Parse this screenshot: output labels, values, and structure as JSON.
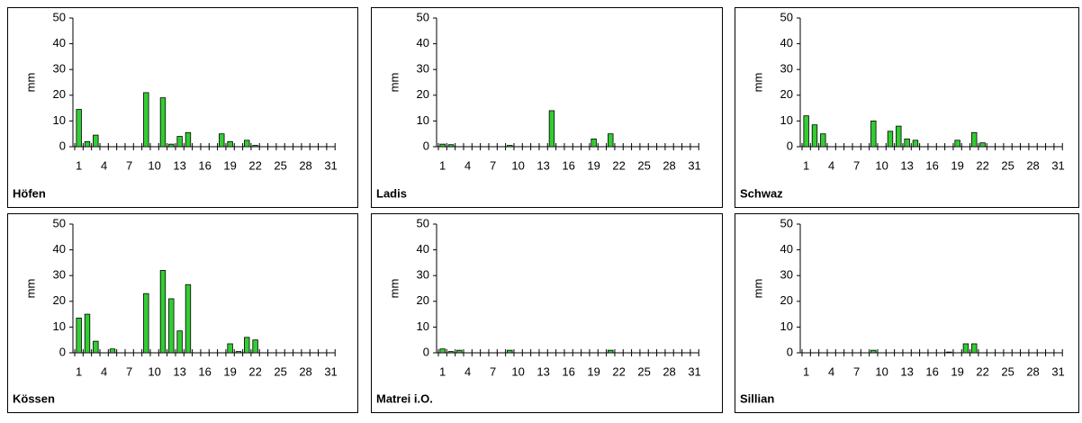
{
  "chart_data": [
    {
      "type": "bar",
      "title": "Höfen",
      "y_label": "mm",
      "color": "#33cc33",
      "categories": [
        "1",
        null,
        null,
        "4",
        null,
        null,
        "7",
        null,
        null,
        "10",
        null,
        null,
        "13",
        null,
        null,
        "16",
        null,
        null,
        "19",
        null,
        null,
        "22",
        null,
        null,
        "25",
        null,
        null,
        "28",
        null,
        null,
        "31"
      ],
      "values": [
        14.5,
        2,
        4.5,
        0,
        0,
        0,
        0,
        0,
        21,
        0,
        19,
        1,
        4,
        5.5,
        0,
        0,
        0,
        5,
        2,
        0,
        2.5,
        0.5,
        0,
        0,
        0,
        0,
        0,
        0,
        0,
        0,
        0
      ],
      "ylim": [
        0,
        50
      ],
      "yticks": [
        0,
        10,
        20,
        30,
        40,
        50
      ]
    },
    {
      "type": "bar",
      "title": "Ladis",
      "y_label": "mm",
      "color": "#33cc33",
      "categories": [
        "1",
        null,
        null,
        "4",
        null,
        null,
        "7",
        null,
        null,
        "10",
        null,
        null,
        "13",
        null,
        null,
        "16",
        null,
        null,
        "19",
        null,
        null,
        "22",
        null,
        null,
        "25",
        null,
        null,
        "28",
        null,
        null,
        "31"
      ],
      "values": [
        1,
        0.8,
        0,
        0,
        0,
        0,
        0,
        0,
        0.5,
        0,
        0,
        0,
        0,
        14,
        0,
        0,
        0,
        0,
        3,
        0,
        5,
        0,
        0,
        0,
        0,
        0,
        0,
        0,
        0,
        0,
        0
      ],
      "ylim": [
        0,
        50
      ],
      "yticks": [
        0,
        10,
        20,
        30,
        40,
        50
      ]
    },
    {
      "type": "bar",
      "title": "Schwaz",
      "y_label": "mm",
      "color": "#33cc33",
      "categories": [
        "1",
        null,
        null,
        "4",
        null,
        null,
        "7",
        null,
        null,
        "10",
        null,
        null,
        "13",
        null,
        null,
        "16",
        null,
        null,
        "19",
        null,
        null,
        "22",
        null,
        null,
        "25",
        null,
        null,
        "28",
        null,
        null,
        "31"
      ],
      "values": [
        12,
        8.5,
        5,
        0,
        0,
        0,
        0,
        0,
        10,
        0,
        6,
        8,
        3,
        2.5,
        0,
        0,
        0,
        0,
        2.5,
        0,
        5.5,
        1.5,
        0,
        0,
        0,
        0,
        0,
        0,
        0,
        0,
        0
      ],
      "ylim": [
        0,
        50
      ],
      "yticks": [
        0,
        10,
        20,
        30,
        40,
        50
      ]
    },
    {
      "type": "bar",
      "title": "Kössen",
      "y_label": "mm",
      "color": "#33cc33",
      "categories": [
        "1",
        null,
        null,
        "4",
        null,
        null,
        "7",
        null,
        null,
        "10",
        null,
        null,
        "13",
        null,
        null,
        "16",
        null,
        null,
        "19",
        null,
        null,
        "22",
        null,
        null,
        "25",
        null,
        null,
        "28",
        null,
        null,
        "31"
      ],
      "values": [
        13.5,
        15,
        4.5,
        0,
        1.5,
        0,
        0,
        0,
        23,
        0,
        32,
        21,
        8.5,
        26.5,
        0,
        0,
        0,
        0,
        3.5,
        0.5,
        6,
        5,
        0,
        0,
        0,
        0,
        0,
        0,
        0,
        0,
        0
      ],
      "ylim": [
        0,
        50
      ],
      "yticks": [
        0,
        10,
        20,
        30,
        40,
        50
      ]
    },
    {
      "type": "bar",
      "title": "Matrei i.O.",
      "y_label": "mm",
      "color": "#33cc33",
      "categories": [
        "1",
        null,
        null,
        "4",
        null,
        null,
        "7",
        null,
        null,
        "10",
        null,
        null,
        "13",
        null,
        null,
        "16",
        null,
        null,
        "19",
        null,
        null,
        "22",
        null,
        null,
        "25",
        null,
        null,
        "28",
        null,
        null,
        "31"
      ],
      "values": [
        1.5,
        0.5,
        1,
        0,
        0,
        0,
        0,
        0,
        1,
        0,
        0,
        0,
        0,
        0,
        0,
        0,
        0,
        0,
        0,
        0,
        1,
        0,
        0,
        0,
        0,
        0,
        0,
        0,
        0,
        0,
        0
      ],
      "ylim": [
        0,
        50
      ],
      "yticks": [
        0,
        10,
        20,
        30,
        40,
        50
      ]
    },
    {
      "type": "bar",
      "title": "Sillian",
      "y_label": "mm",
      "color": "#33cc33",
      "categories": [
        "1",
        null,
        null,
        "4",
        null,
        null,
        "7",
        null,
        null,
        "10",
        null,
        null,
        "13",
        null,
        null,
        "16",
        null,
        null,
        "19",
        null,
        null,
        "22",
        null,
        null,
        "25",
        null,
        null,
        "28",
        null,
        null,
        "31"
      ],
      "values": [
        0,
        0,
        0,
        0,
        0,
        0,
        0,
        0,
        1,
        0,
        0,
        0,
        0,
        0,
        0,
        0,
        0,
        0.3,
        0,
        3.5,
        3.5,
        0,
        0,
        0,
        0,
        0,
        0,
        0,
        0,
        0,
        0
      ],
      "ylim": [
        0,
        50
      ],
      "yticks": [
        0,
        10,
        20,
        30,
        40,
        50
      ]
    }
  ]
}
